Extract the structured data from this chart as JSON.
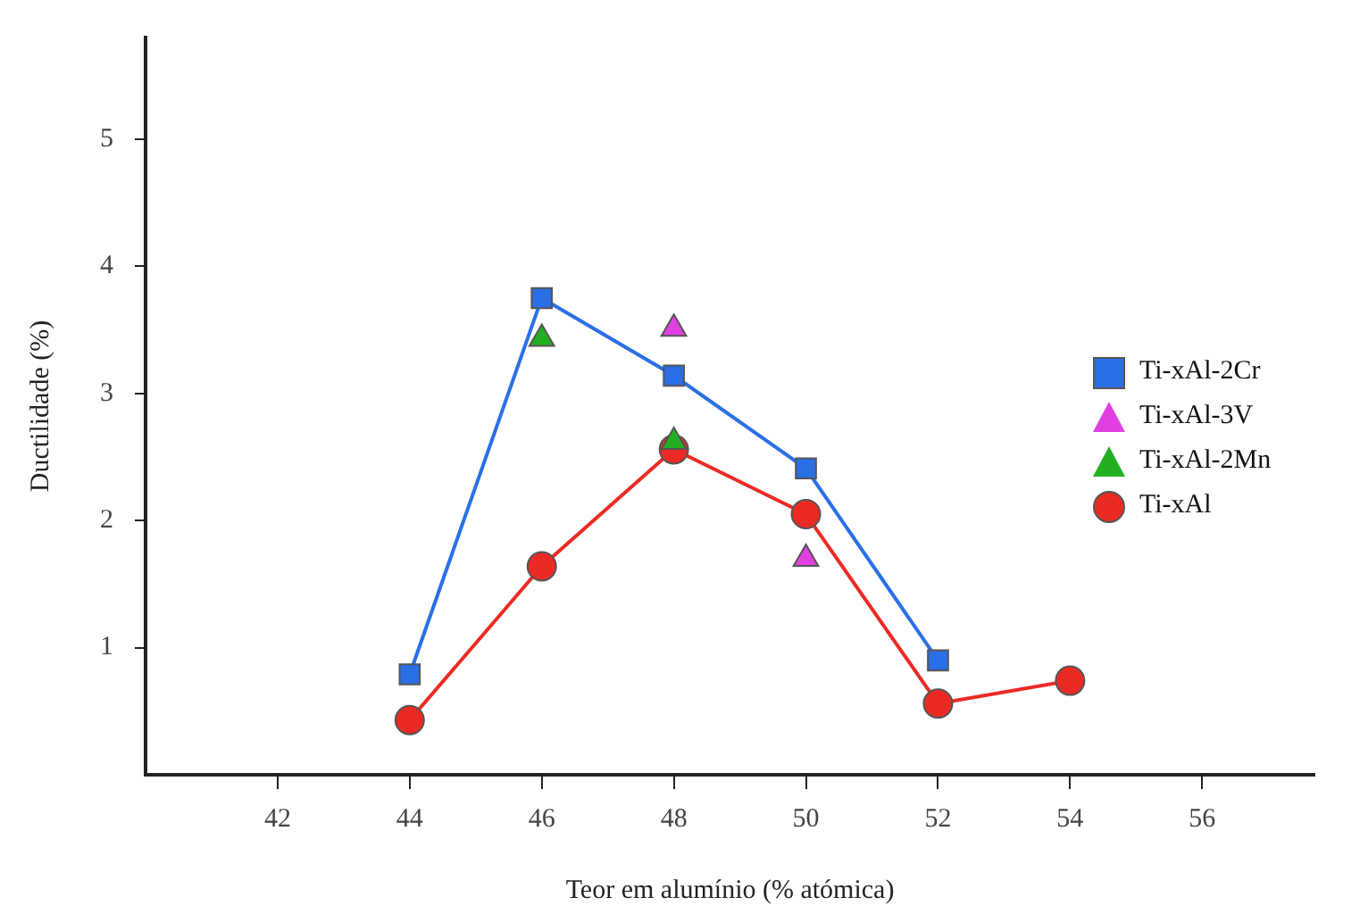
{
  "chart_data": {
    "type": "line",
    "xlabel": "Teor em alumínio (% atómica)",
    "ylabel": "Ductilidade (%)",
    "xlim": [
      40,
      57.7
    ],
    "xticks": [
      42,
      44,
      46,
      48,
      50,
      52,
      54,
      56
    ],
    "ylim": [
      0,
      5.8
    ],
    "yticks": [
      1,
      2,
      3,
      4,
      5
    ],
    "grid": false,
    "legend": "right",
    "series": [
      {
        "name": "Ti-xAl-2Cr",
        "type": "line",
        "marker": "square",
        "color": "#2a6fe6",
        "x": [
          44,
          46,
          48,
          50,
          52
        ],
        "values": [
          0.79,
          3.75,
          3.14,
          2.41,
          0.9
        ]
      },
      {
        "name": "Ti-xAl-3V",
        "type": "scatter",
        "marker": "triangle",
        "color": "#e040e0",
        "x": [
          48,
          50
        ],
        "values": [
          3.51,
          1.7
        ]
      },
      {
        "name": "Ti-xAl-2Mn",
        "type": "scatter",
        "marker": "triangle",
        "color": "#22b022",
        "x": [
          46,
          48
        ],
        "values": [
          3.43,
          2.62
        ]
      },
      {
        "name": "Ti-xAl",
        "type": "line",
        "marker": "circle",
        "color": "#ec2a24",
        "x": [
          44,
          46,
          48,
          50,
          52,
          54
        ],
        "values": [
          0.43,
          1.64,
          2.56,
          2.05,
          0.56,
          0.74
        ]
      }
    ]
  }
}
